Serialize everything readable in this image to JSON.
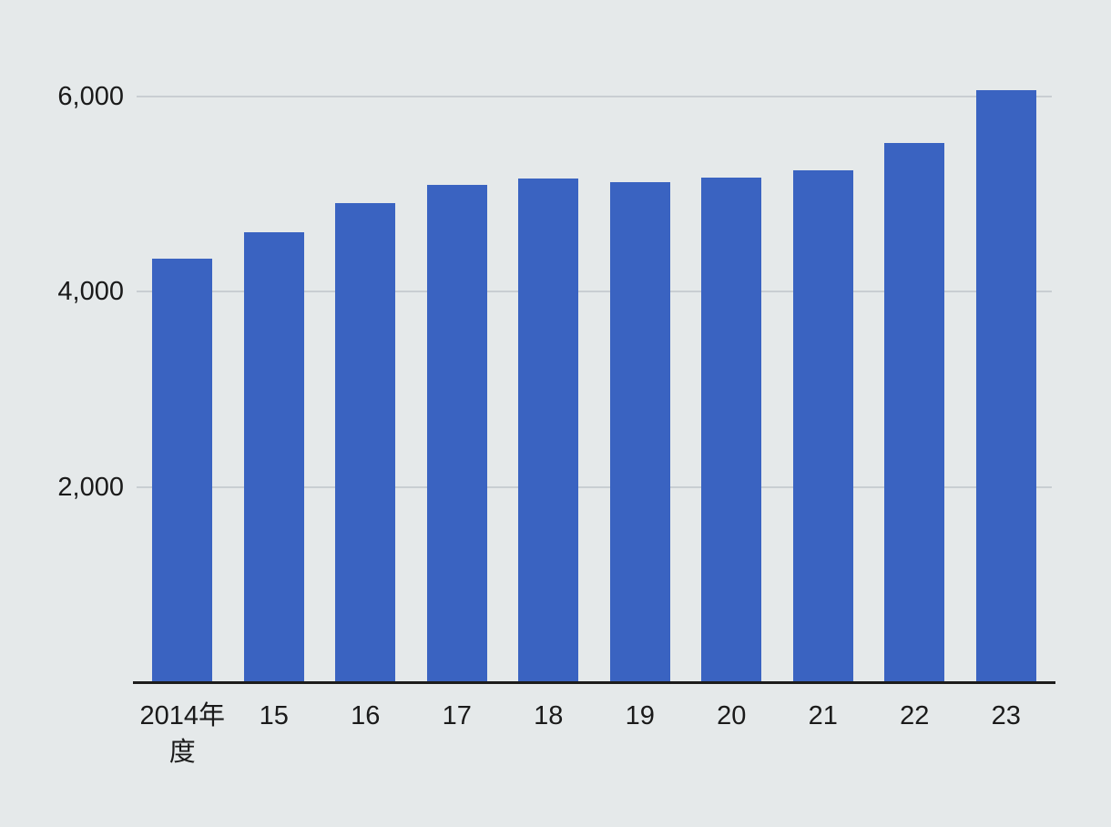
{
  "chart_data": {
    "type": "bar",
    "title": "",
    "xlabel": "",
    "ylabel": "",
    "categories": [
      "2014年度",
      "15",
      "16",
      "17",
      "18",
      "19",
      "20",
      "21",
      "22",
      "23"
    ],
    "category_display_lines": [
      [
        "2014年",
        "度"
      ],
      [
        "15"
      ],
      [
        "16"
      ],
      [
        "17"
      ],
      [
        "18"
      ],
      [
        "19"
      ],
      [
        "20"
      ],
      [
        "21"
      ],
      [
        "22"
      ],
      [
        "23"
      ]
    ],
    "values": [
      4350,
      4620,
      4920,
      5100,
      5170,
      5130,
      5180,
      5250,
      5530,
      6070
    ],
    "yticks": [
      {
        "label": "2,000",
        "value": 2000
      },
      {
        "label": "4,000",
        "value": 4000
      },
      {
        "label": "6,000",
        "value": 6000
      }
    ],
    "ylim": [
      0,
      6250
    ],
    "grid": "horizontal",
    "legend": "none",
    "colors": {
      "bar": "#3a63c1",
      "background": "#e5e9ea",
      "gridline": "#c9ced2",
      "axis": "#1c1c1c",
      "text": "#1a1a1a"
    }
  }
}
